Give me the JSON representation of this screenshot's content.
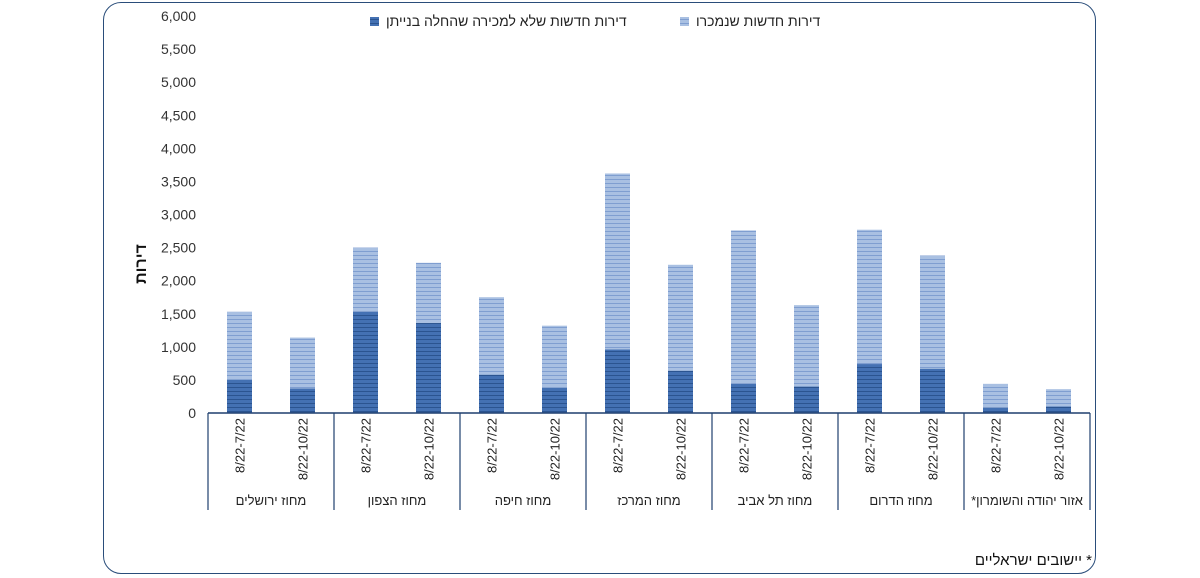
{
  "chart_data": {
    "type": "bar",
    "stacked": true,
    "ylabel": "דירות",
    "ylim": [
      0,
      6000
    ],
    "y_ticks": [
      "0",
      "500",
      "1,000",
      "1,500",
      "2,000",
      "2,500",
      "3,000",
      "3,500",
      "4,000",
      "4,500",
      "5,000",
      "5,500",
      "6,000"
    ],
    "groups": [
      "מחוז ירושלים",
      "מחוז הצפון",
      "מחוז חיפה",
      "מחוז המרכז",
      "מחוז תל אביב",
      "מחוז הדרום",
      "אזור יהודה והשומרון*"
    ],
    "categories": [
      "8/22-7/22",
      "8/22-10/22",
      "8/22-7/22",
      "8/22-10/22",
      "8/22-7/22",
      "8/22-10/22",
      "8/22-7/22",
      "8/22-10/22",
      "8/22-7/22",
      "8/22-10/22",
      "8/22-7/22",
      "8/22-10/22",
      "8/22-7/22",
      "8/22-10/22"
    ],
    "series": [
      {
        "name": "דירות חדשות שלא למכירה שהחלה בנייתן",
        "color": "#3d6aa8",
        "values": [
          500,
          370,
          1530,
          1360,
          580,
          380,
          960,
          640,
          440,
          400,
          740,
          670,
          80,
          100
        ]
      },
      {
        "name": "דירות חדשות שנמכרו",
        "color": "#9bb5dc",
        "values": [
          1030,
          770,
          970,
          910,
          1170,
          940,
          2660,
          1600,
          2320,
          1230,
          2030,
          1710,
          360,
          260
        ]
      }
    ],
    "legend_position": "top"
  },
  "footnote": "* יישובים ישראליים"
}
